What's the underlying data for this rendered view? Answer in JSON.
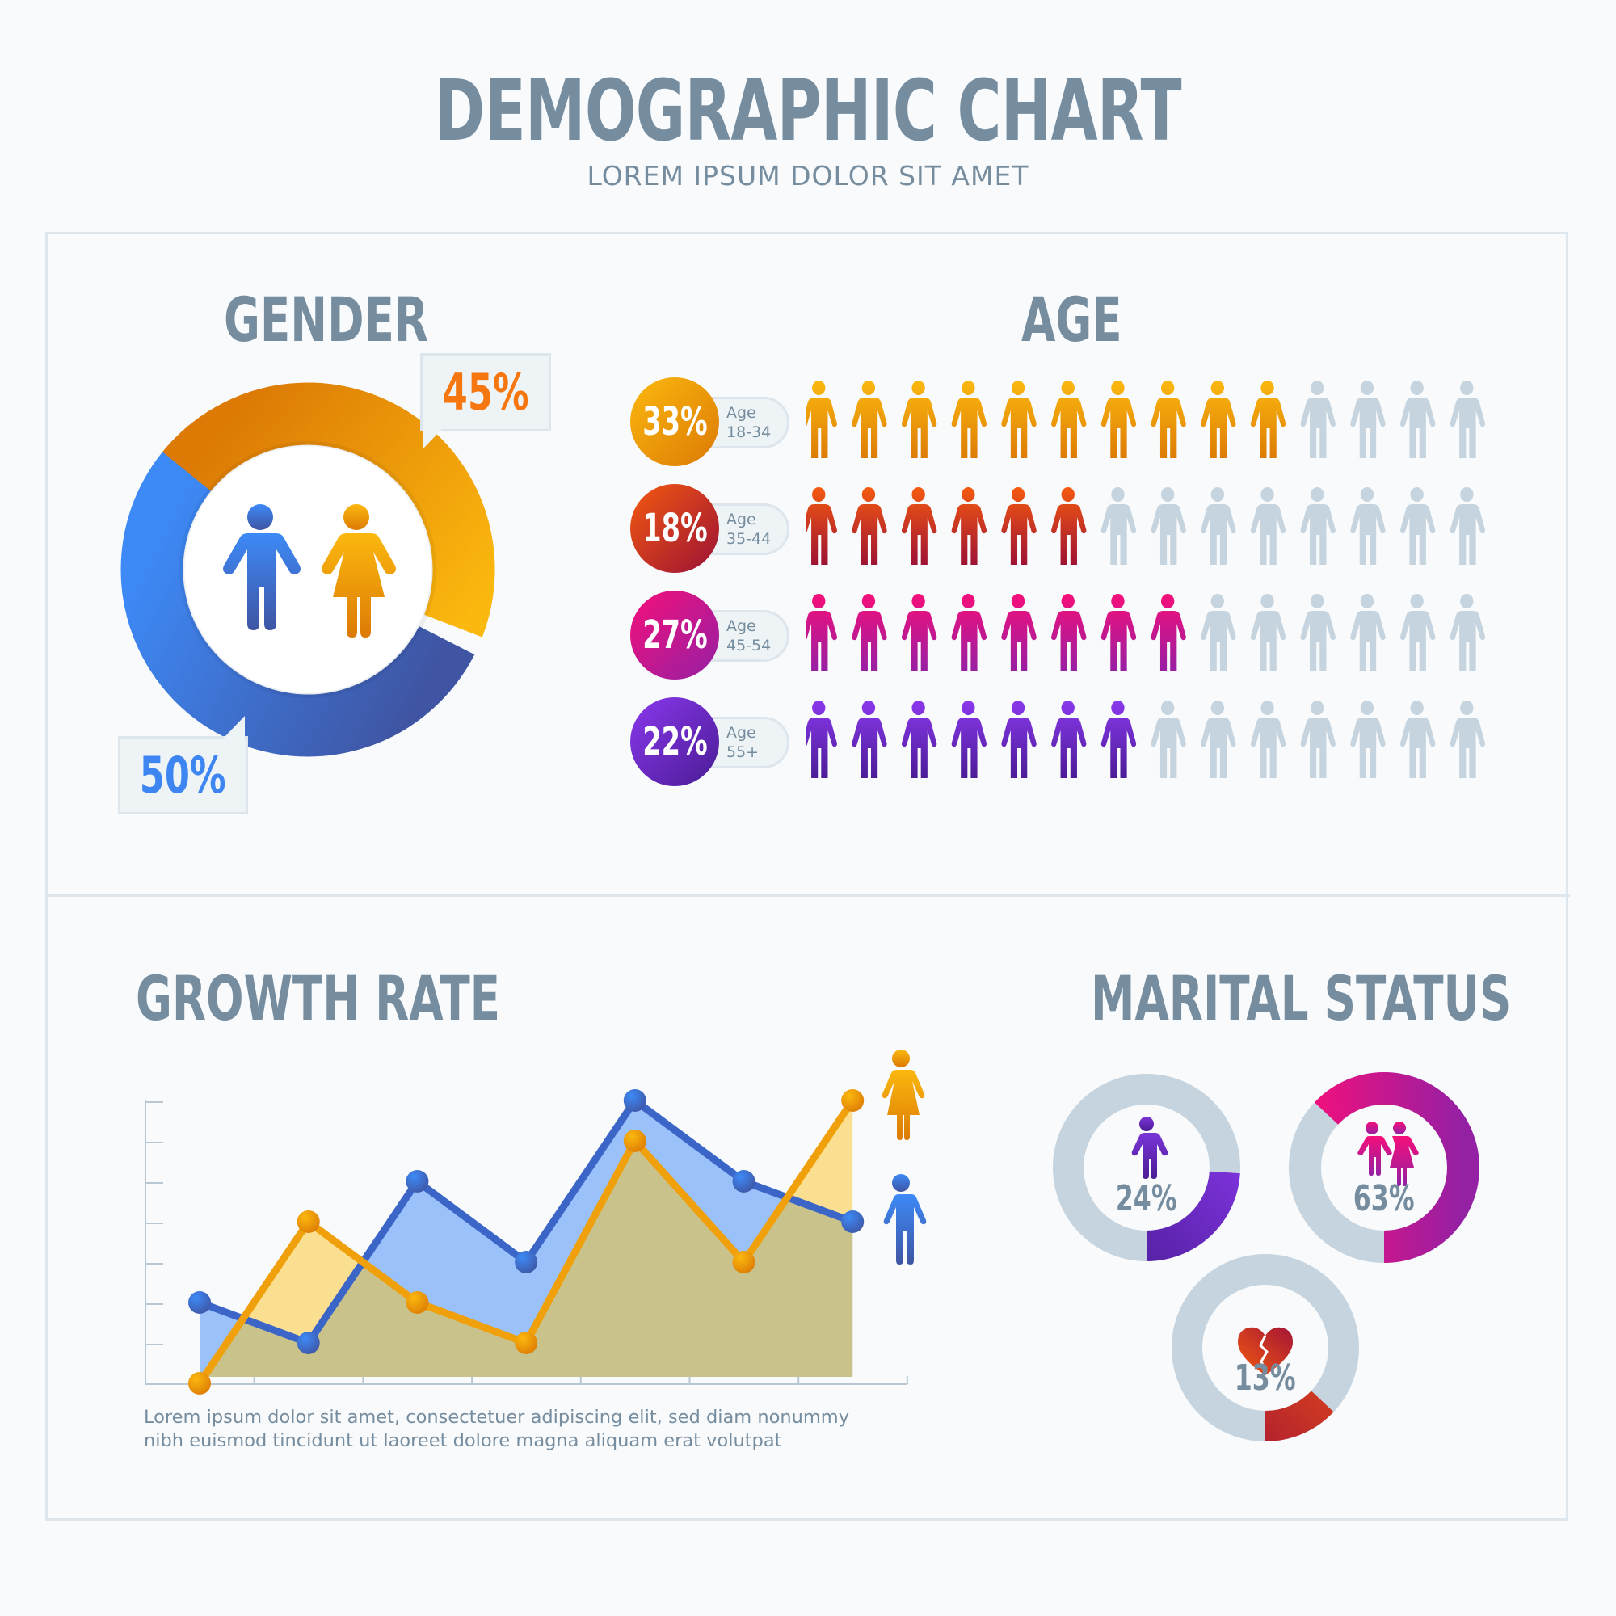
{
  "header": {
    "title": "DEMOGRAPHIC CHART",
    "subtitle": "LOREM IPSUM DOLOR SIT AMET"
  },
  "colors": {
    "heading": "#768d9f",
    "male_blue": "#3d86f2",
    "male_blue_dark": "#3f55a3",
    "female_orange": "#fbb80e",
    "female_orange_dark": "#dc7a05",
    "inactive_gray": "#c5d4de",
    "panel_border": "#dde6ec"
  },
  "gender": {
    "heading": "GENDER",
    "female_pct_label": "45%",
    "male_pct_label": "50%",
    "icons": [
      "male-icon",
      "female-icon"
    ]
  },
  "age": {
    "heading": "AGE",
    "rows": [
      {
        "pct": "33%",
        "label": "Age",
        "range": "18-34",
        "filled": 10,
        "total": 14,
        "c1": "#fbb80e",
        "c2": "#dc7a05"
      },
      {
        "pct": "18%",
        "label": "Age",
        "range": "35-44",
        "filled": 6,
        "total": 14,
        "c1": "#f45a10",
        "c2": "#9b1035"
      },
      {
        "pct": "27%",
        "label": "Age",
        "range": "45-54",
        "filled": 8,
        "total": 14,
        "c1": "#f50f7a",
        "c2": "#9420a4"
      },
      {
        "pct": "22%",
        "label": "Age",
        "range": "55+",
        "filled": 7,
        "total": 14,
        "c1": "#8a38ec",
        "c2": "#4a1c95"
      }
    ]
  },
  "growth": {
    "heading": "GROWTH RATE",
    "description_line1": "Lorem ipsum dolor sit amet, consectetuer adipiscing elit, sed diam nonummy",
    "description_line2": "nibh euismod tincidunt ut laoreet dolore magna aliquam erat volutpat",
    "legend": [
      "female-icon",
      "male-icon"
    ]
  },
  "marital": {
    "heading": "MARITAL STATUS",
    "items": [
      {
        "pct": "24%",
        "icon": "single-person-icon",
        "value": 24
      },
      {
        "pct": "63%",
        "icon": "couple-icon",
        "value": 63
      },
      {
        "pct": "13%",
        "icon": "broken-heart-icon",
        "value": 13
      }
    ]
  },
  "chart_data": [
    {
      "type": "pie",
      "title": "GENDER",
      "categories": [
        "Female",
        "Male"
      ],
      "values": [
        45,
        50
      ],
      "labels": [
        "45%",
        "50%"
      ],
      "style": "donut"
    },
    {
      "type": "bar",
      "title": "AGE",
      "categories": [
        "Age 18-34",
        "Age 35-44",
        "Age 45-54",
        "Age 55+"
      ],
      "values": [
        33,
        18,
        27,
        22
      ],
      "icon_counts_filled": [
        10,
        6,
        8,
        7
      ],
      "icon_counts_total": 14,
      "style": "pictograph"
    },
    {
      "type": "area",
      "title": "GROWTH RATE",
      "x": [
        1,
        2,
        3,
        4,
        5,
        6,
        7
      ],
      "series": [
        {
          "name": "Male",
          "values": [
            2,
            1,
            5,
            3,
            7,
            5,
            4
          ]
        },
        {
          "name": "Female",
          "values": [
            0,
            4,
            2,
            1,
            6,
            3,
            7
          ]
        }
      ],
      "ylim": [
        0,
        7
      ],
      "xlabel": "",
      "ylabel": "",
      "grid": false,
      "legend_position": "right (icons)"
    },
    {
      "type": "pie",
      "title": "MARITAL STATUS",
      "categories": [
        "Single",
        "Married",
        "Divorced"
      ],
      "values": [
        24,
        63,
        13
      ],
      "labels": [
        "24%",
        "63%",
        "13%"
      ],
      "style": "separate donuts"
    }
  ]
}
